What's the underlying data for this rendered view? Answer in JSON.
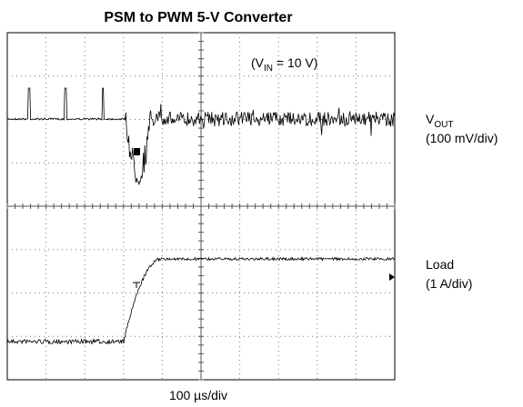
{
  "header": {
    "title": "PSM to PWM 5-V Converter"
  },
  "annotation": {
    "open": "(V",
    "sub": "IN",
    "rest": " = 10 V)"
  },
  "channels": [
    {
      "name": "V",
      "sub": "OUT",
      "scale": "(100 mV/div)"
    },
    {
      "name": "Load",
      "scale": "(1 A/div)"
    }
  ],
  "timebase": "100 µs/div"
}
